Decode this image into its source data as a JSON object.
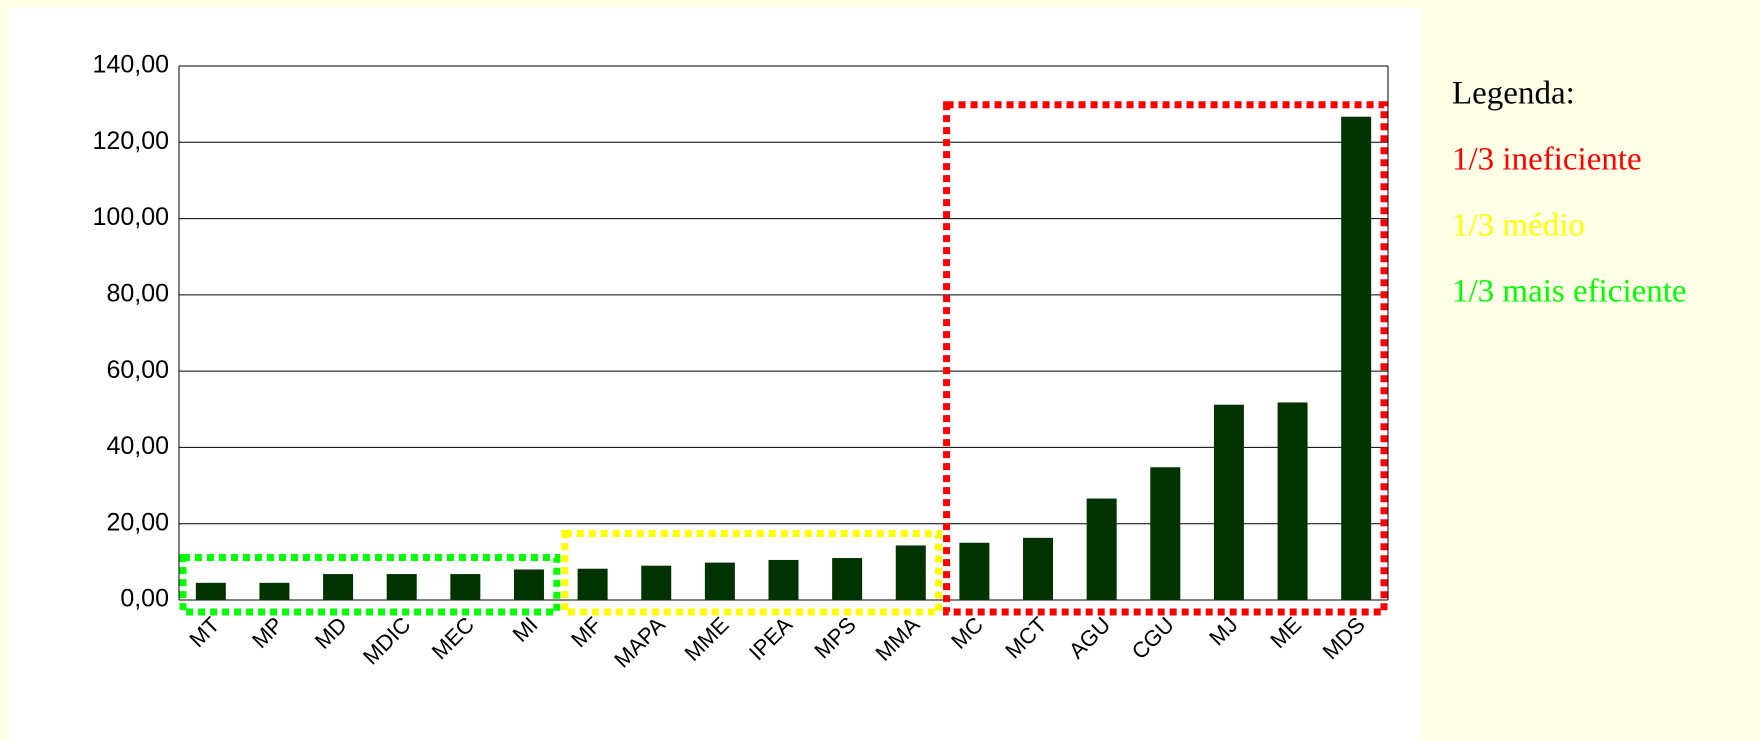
{
  "chart_data": {
    "type": "bar",
    "categories": [
      "MT",
      "MP",
      "MD",
      "MDIC",
      "MEC",
      "MI",
      "MF",
      "MAPA",
      "MME",
      "IPEA",
      "MPS",
      "MMA",
      "MC",
      "MCT",
      "AGU",
      "CGU",
      "MJ",
      "ME",
      "MDS"
    ],
    "values": [
      4.5,
      4.5,
      6.8,
      6.8,
      6.8,
      8.0,
      8.2,
      9.0,
      9.8,
      10.5,
      11.0,
      14.3,
      15.0,
      16.3,
      26.6,
      34.8,
      51.2,
      51.8,
      126.7
    ],
    "color": "#003300",
    "ylim": [
      0,
      140
    ],
    "yticks": [
      {
        "value": 0,
        "label": "0,00"
      },
      {
        "value": 20,
        "label": "20,00"
      },
      {
        "value": 40,
        "label": "40,00"
      },
      {
        "value": 60,
        "label": "60,00"
      },
      {
        "value": 80,
        "label": "80,00"
      },
      {
        "value": 100,
        "label": "100,00"
      },
      {
        "value": 120,
        "label": "120,00"
      },
      {
        "value": 140,
        "label": "140,00"
      }
    ],
    "grid": true,
    "legend": {
      "title": "Legenda:",
      "items": [
        {
          "label": "1/3 ineficiente",
          "color": "#ff0000"
        },
        {
          "label": "1/3 médio",
          "color": "#ffff00"
        },
        {
          "label": "1/3 mais eficiente",
          "color": "#00ff00"
        }
      ]
    }
  }
}
